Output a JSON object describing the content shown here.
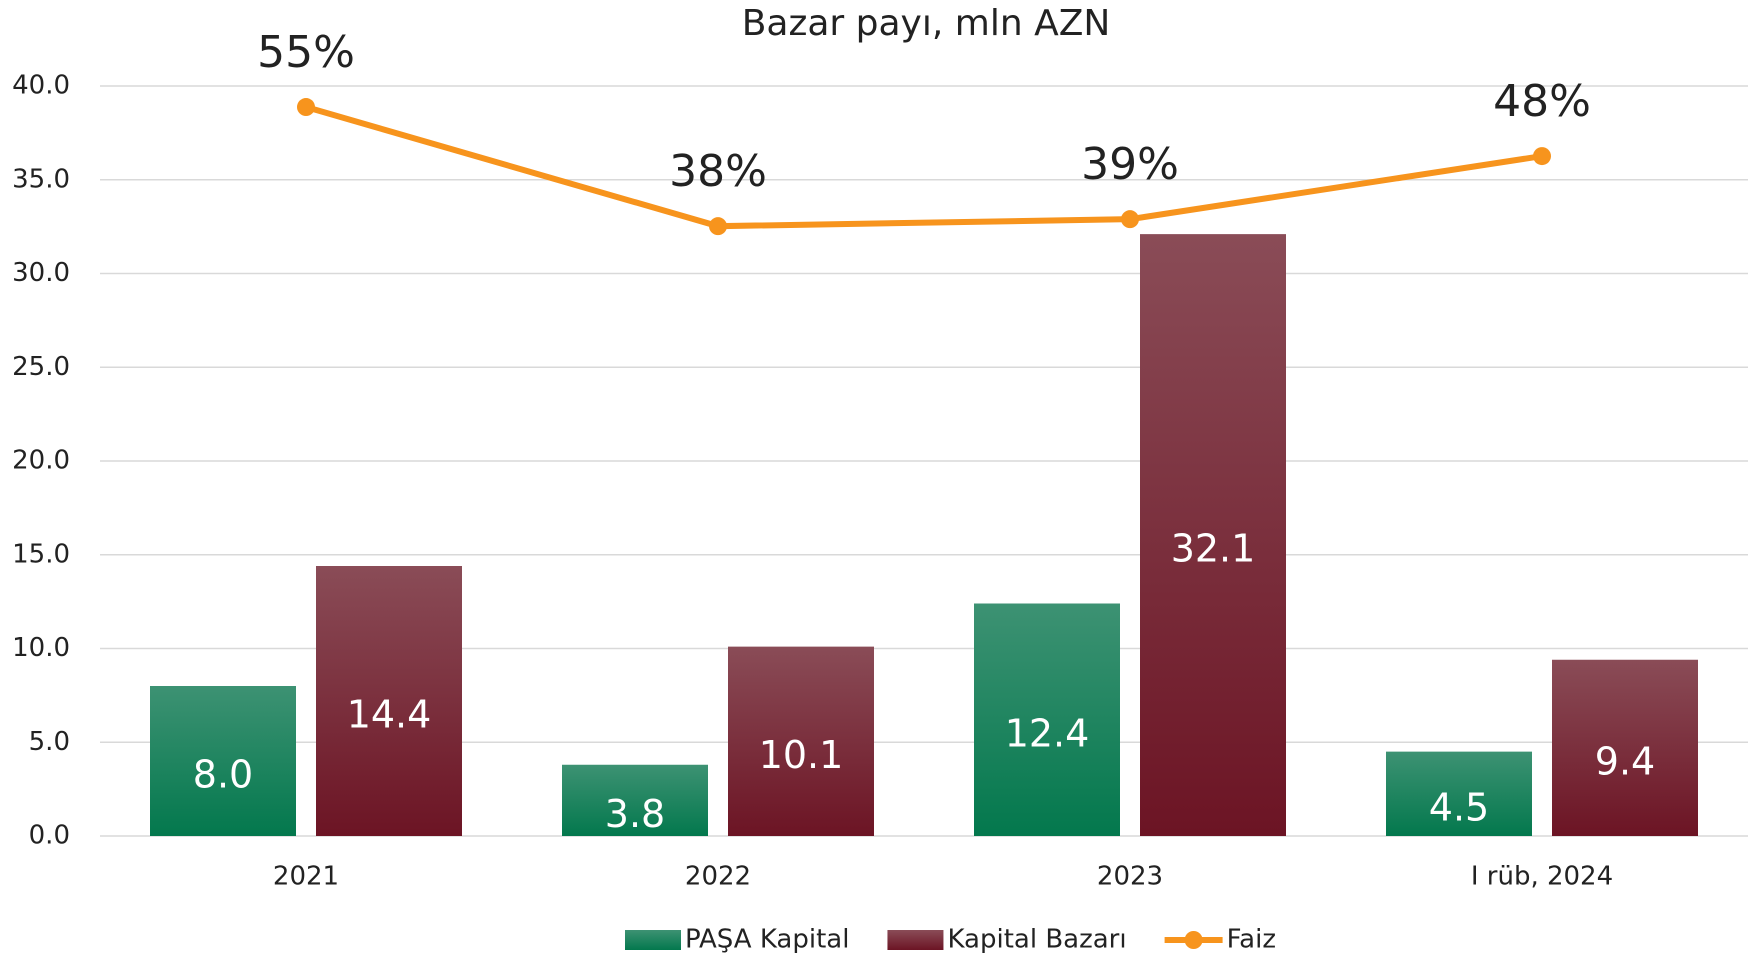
{
  "chart_data": {
    "type": "bar",
    "title": "Bazar payı, mln AZN",
    "categories": [
      "2021",
      "2022",
      "2023",
      "I rüb, 2024"
    ],
    "series": [
      {
        "name": "PAŞA Kapital",
        "color": "#0b7c52",
        "values": [
          8.0,
          3.8,
          12.4,
          4.5
        ],
        "value_labels": [
          "8.0",
          "3.8",
          "12.4",
          "4.5"
        ]
      },
      {
        "name": "Kapital Bazarı",
        "color": "#761a2b",
        "values": [
          14.4,
          10.1,
          32.1,
          9.4
        ]
      },
      {
        "name": "Faiz",
        "type": "line",
        "axis": "y2",
        "color": "#f7941d",
        "values": [
          55,
          38,
          39,
          48
        ],
        "value_labels": [
          "55%",
          "38%",
          "39%",
          "48%"
        ]
      }
    ],
    "ylim": [
      0,
      40
    ],
    "yticks": [
      {
        "value": 0,
        "label": "0.0"
      },
      {
        "value": 5,
        "label": "5.0"
      },
      {
        "value": 10,
        "label": "10.0"
      },
      {
        "value": 15,
        "label": "15.0"
      },
      {
        "value": 20,
        "label": "20.0"
      },
      {
        "value": 25,
        "label": "25.0"
      },
      {
        "value": 30,
        "label": "30.0"
      },
      {
        "value": 35,
        "label": "35.0"
      },
      {
        "value": 40,
        "label": "40.0"
      }
    ],
    "y2lim": [
      -49,
      58
    ],
    "grid": true
  }
}
